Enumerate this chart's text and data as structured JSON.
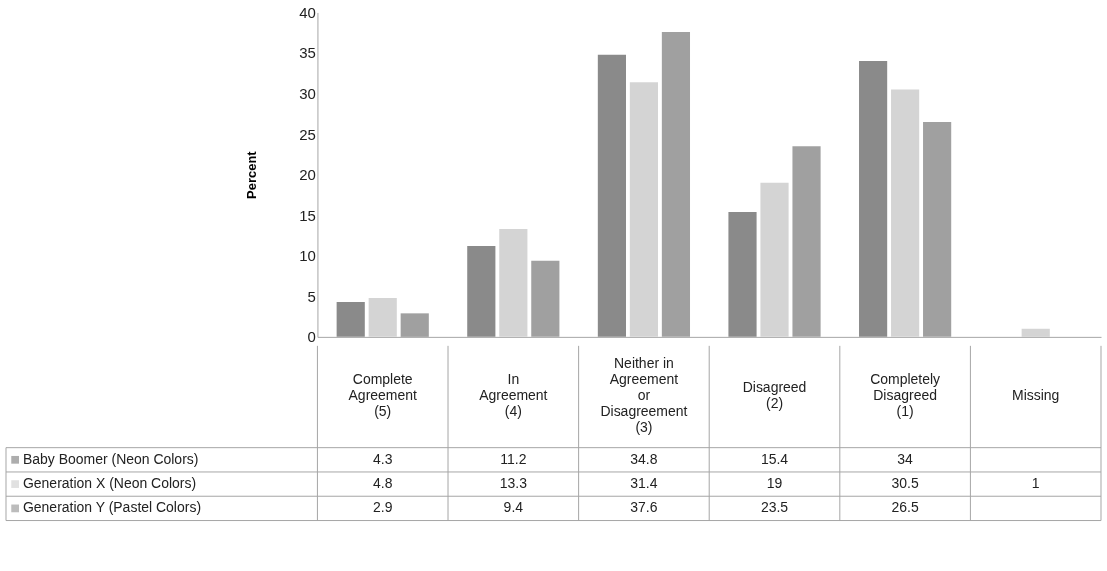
{
  "chart_data": {
    "type": "bar",
    "ylabel": "Percent",
    "categories": [
      "Complete Agreement (5)",
      "In Agreement (4)",
      "Neither in Agreement or Disagreement (3)",
      "Disagreed (2)",
      "Completely Disagreed (1)",
      "Missing"
    ],
    "series": [
      {
        "name": "Baby Boomer (Neon Colors)",
        "color": "#8a8a8a",
        "values": [
          4.3,
          11.2,
          34.8,
          15.4,
          34,
          null
        ]
      },
      {
        "name": "Generation X (Neon Colors)",
        "color": "#d4d4d4",
        "values": [
          4.8,
          13.3,
          31.4,
          19,
          30.5,
          1
        ]
      },
      {
        "name": "Generation Y (Pastel Colors)",
        "color": "#a0a0a0",
        "values": [
          2.9,
          9.4,
          37.6,
          23.5,
          26.5,
          null
        ]
      }
    ],
    "ylim": [
      0,
      40
    ],
    "yticks": [
      0,
      5,
      10,
      15,
      20,
      25,
      30,
      35,
      40
    ],
    "grid": false,
    "legend": "bottom left",
    "data_labels": true
  }
}
